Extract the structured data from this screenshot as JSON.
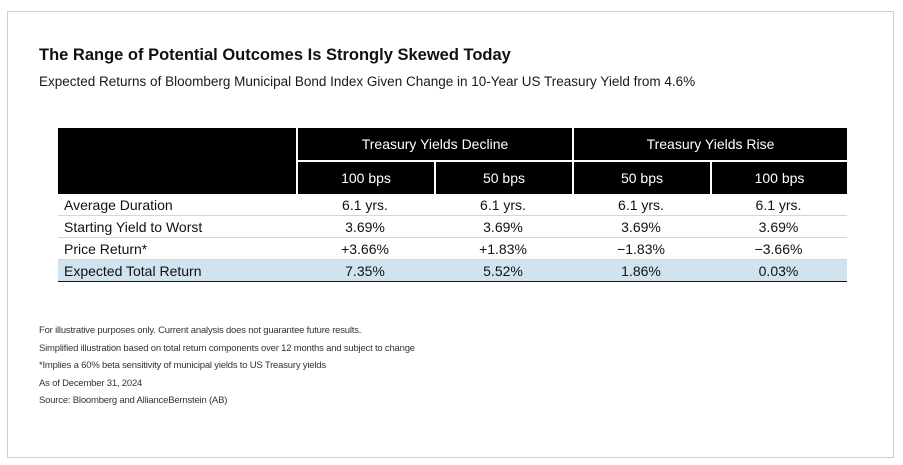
{
  "title": "The Range of Potential Outcomes Is Strongly Skewed Today",
  "subtitle": "Expected Returns of Bloomberg Municipal Bond Index Given Change in 10-Year US Treasury Yield from 4.6%",
  "table": {
    "groups": [
      "Treasury Yields Decline",
      "Treasury Yields Rise"
    ],
    "columns": [
      "100 bps",
      "50 bps",
      "50 bps",
      "100 bps"
    ],
    "rows": [
      {
        "label": "Average Duration",
        "values": [
          "6.1 yrs.",
          "6.1 yrs.",
          "6.1 yrs.",
          "6.1 yrs."
        ]
      },
      {
        "label": "Starting Yield to Worst",
        "values": [
          "3.69%",
          "3.69%",
          "3.69%",
          "3.69%"
        ]
      },
      {
        "label": "Price Return*",
        "values": [
          "+3.66%",
          "+1.83%",
          "−1.83%",
          "−3.66%"
        ]
      },
      {
        "label": "Expected Total Return",
        "values": [
          "7.35%",
          "5.52%",
          "1.86%",
          "0.03%"
        ]
      }
    ],
    "highlight_color": "#cfe4ee"
  },
  "notes": [
    "For illustrative purposes only. Current analysis does not guarantee future results.",
    "Simplified illustration based on total return components over 12 months and subject to change",
    "*Implies a 60% beta sensitivity of municipal yields to US Treasury yields",
    "As of December 31, 2024",
    "Source: Bloomberg and AllianceBernstein (AB)"
  ]
}
